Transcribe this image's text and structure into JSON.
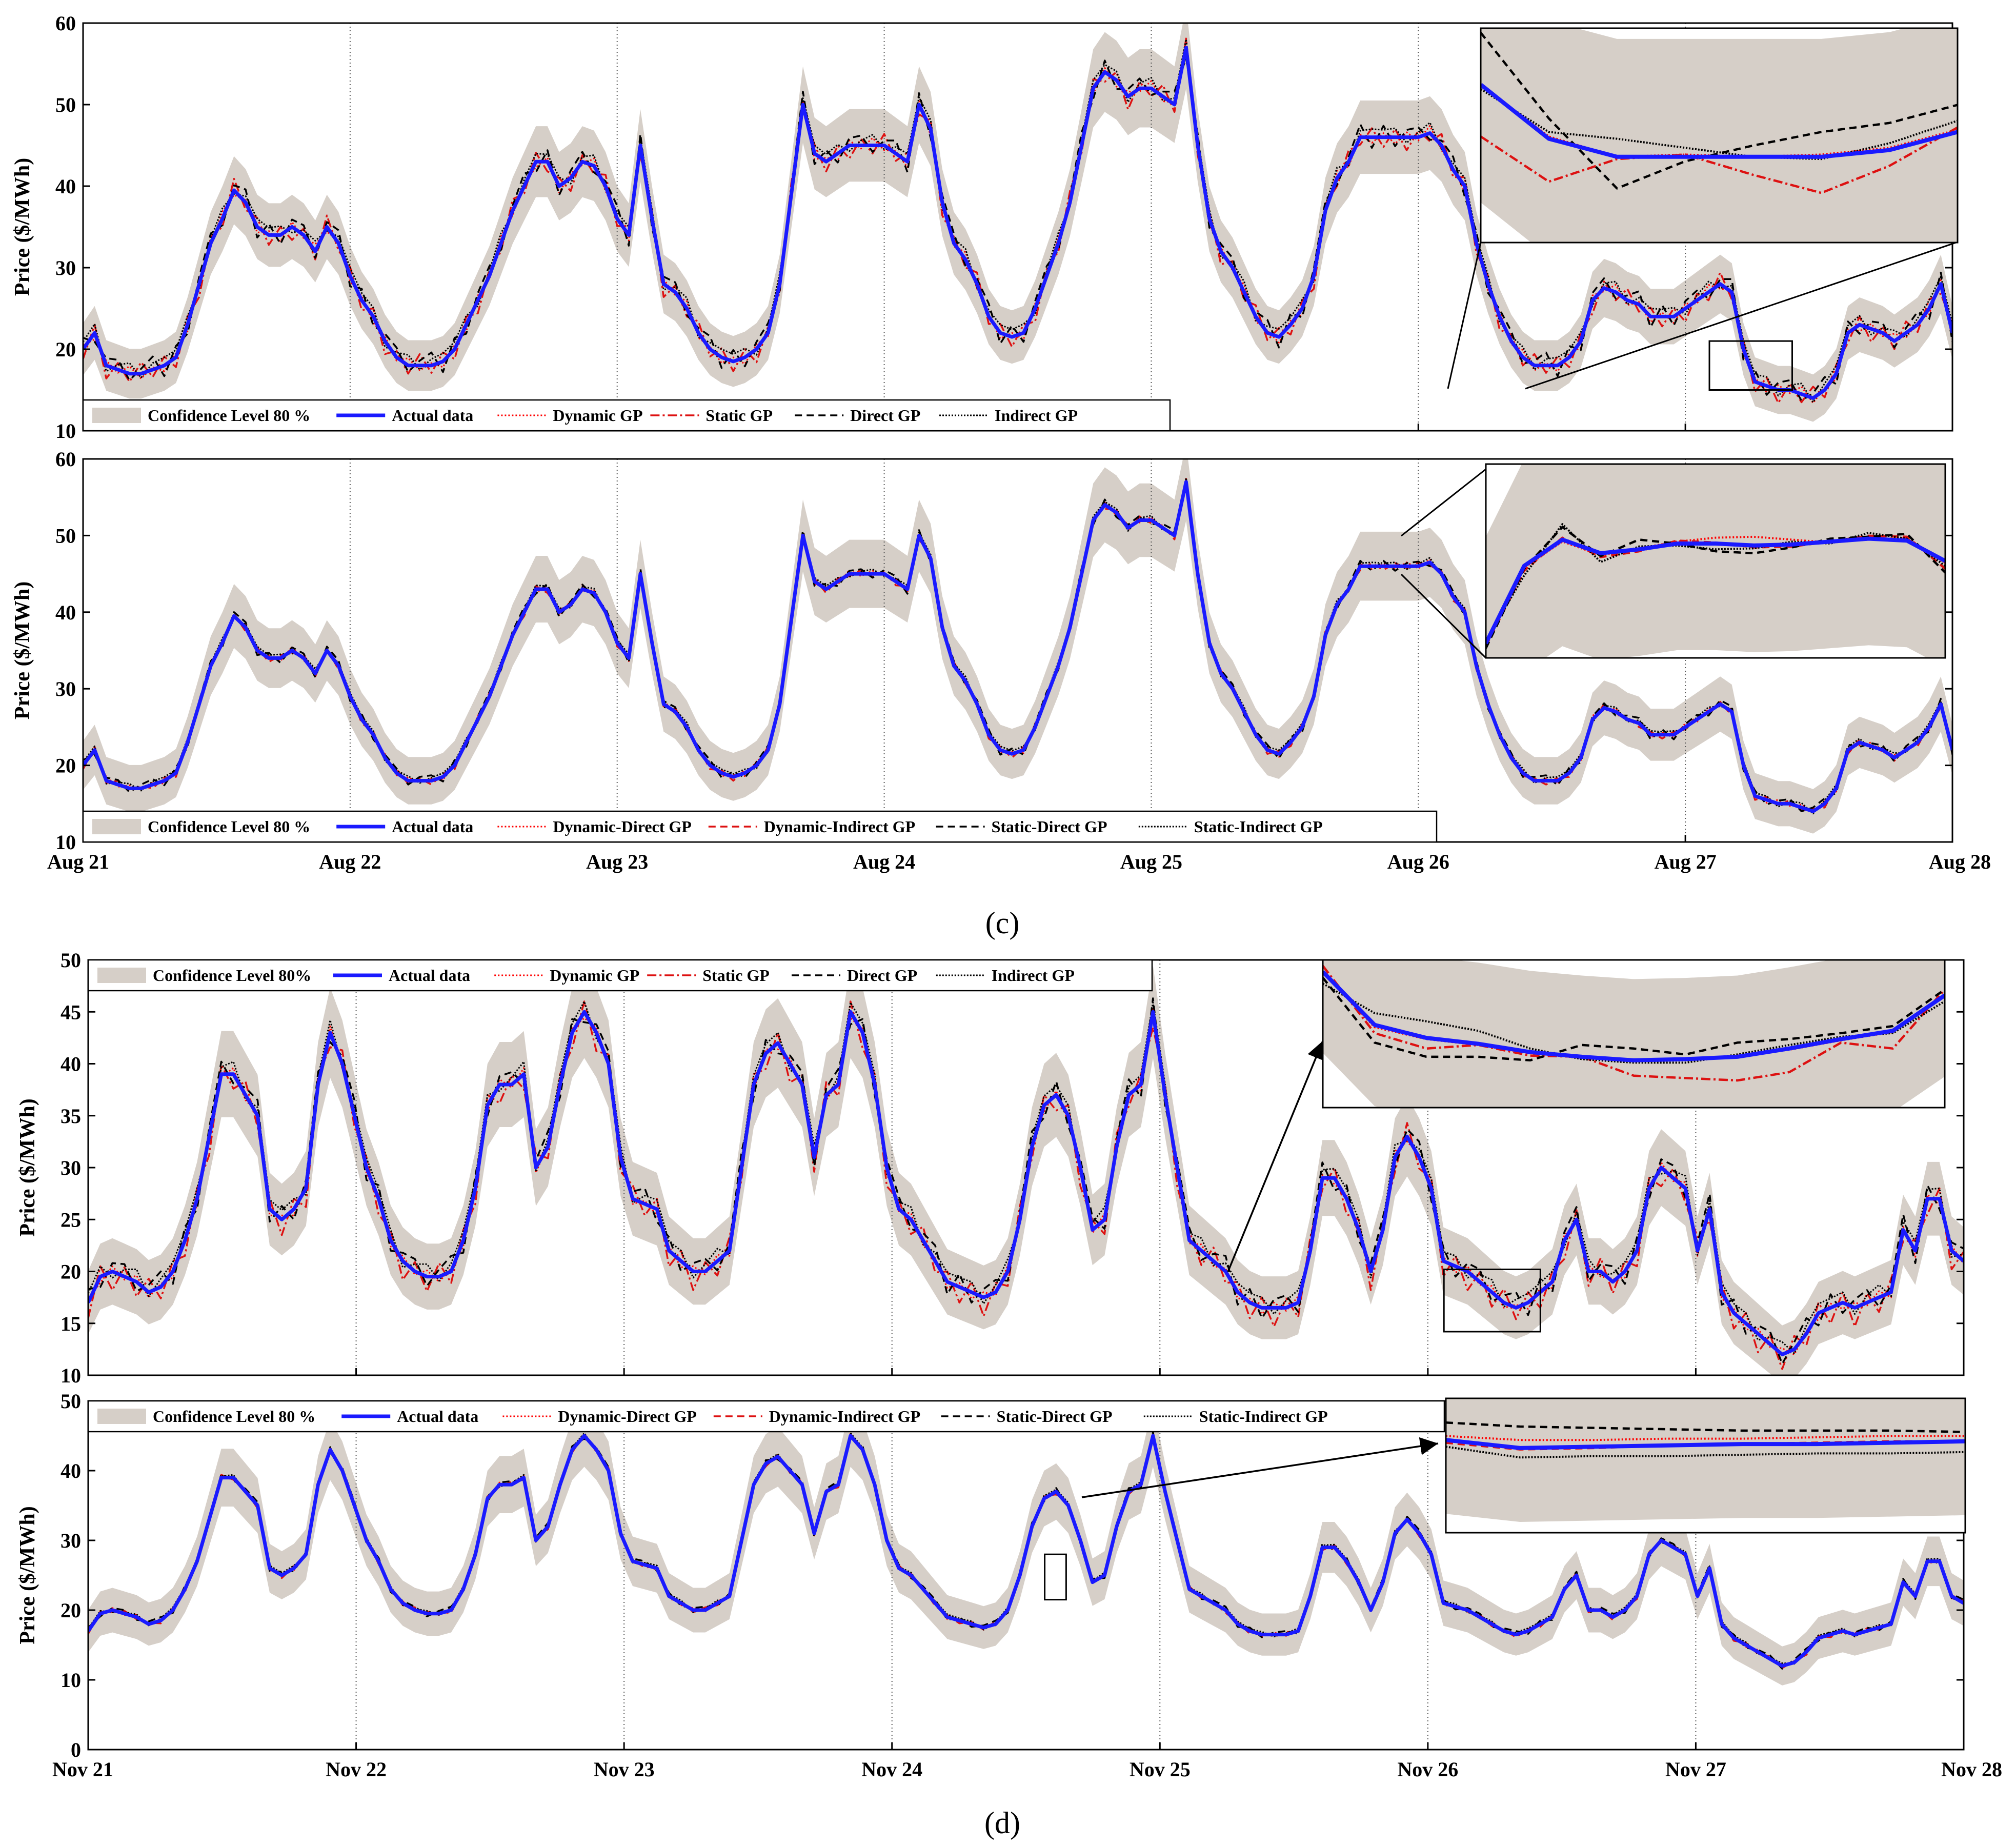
{
  "colors": {
    "band": "#d6cfc8",
    "actual": "#1a1aff",
    "dynamic": "#ff0000",
    "static": "#dd1111",
    "direct": "#000000",
    "indirect": "#000000"
  },
  "captions": {
    "c": "(c)",
    "d": "(d)"
  },
  "chart_data": [
    {
      "type": "line",
      "panel": "c-top",
      "ylabel": "Price ($/MWh)",
      "ylim": [
        10,
        60
      ],
      "yticks": [
        10,
        20,
        30,
        40,
        50,
        60
      ],
      "xticklabels": [
        "Aug 21",
        "Aug 22",
        "Aug 23",
        "Aug 24",
        "Aug 25",
        "Aug 26",
        "Aug 27",
        "Aug 28"
      ],
      "xlabels_shown": false,
      "legend": [
        "Confidence Level 80 %",
        "Actual data",
        "Dynamic GP",
        "Static GP",
        "Direct GP",
        "Indirect GP"
      ],
      "legend_position": "bottom-left",
      "actual": [
        20,
        22,
        18,
        17.5,
        17,
        17,
        17.5,
        18,
        19,
        23,
        28,
        33,
        36,
        39.5,
        38,
        35,
        34,
        34,
        35,
        34,
        32,
        35,
        33,
        29,
        26,
        24,
        21,
        19,
        18,
        18,
        18,
        18.5,
        20,
        23,
        26,
        29,
        33,
        37,
        40,
        43,
        43,
        40,
        41,
        43,
        42.5,
        40,
        36,
        34,
        45,
        36,
        28,
        27,
        25,
        22,
        20,
        19,
        18.5,
        19,
        20,
        22,
        28,
        39,
        50,
        44,
        43,
        44,
        45,
        45,
        45,
        45,
        44,
        43,
        50,
        47,
        38,
        33,
        31,
        28,
        24,
        22,
        21.5,
        22,
        25,
        29,
        33,
        38,
        45,
        52,
        54,
        53,
        51,
        52,
        52,
        51,
        50,
        57,
        45,
        36,
        32,
        30,
        27,
        24,
        22,
        21.5,
        23,
        25,
        29,
        37,
        41,
        43,
        46,
        46,
        46,
        46,
        46,
        46,
        46.5,
        45,
        42,
        40,
        33,
        28,
        24,
        21,
        19,
        18,
        18,
        18,
        19,
        21,
        26,
        27.5,
        27,
        26,
        25.5,
        24,
        24,
        24,
        25,
        26,
        27,
        28,
        27,
        20,
        16,
        15.5,
        15,
        15,
        14.5,
        14,
        15,
        17,
        22,
        23,
        22.5,
        22,
        21,
        22,
        23,
        25,
        28,
        22
      ],
      "series": [
        {
          "name": "Dynamic GP",
          "offsets": [
            0.5,
            -0.8,
            0.6,
            -0.4,
            0.9,
            -0.6,
            0.3,
            -0.7
          ]
        },
        {
          "name": "Static GP",
          "offsets": [
            -1.2,
            1.0,
            -1.6,
            0.8,
            -1.0,
            1.4,
            -0.9,
            1.1
          ]
        },
        {
          "name": "Direct GP",
          "offsets": [
            1.4,
            -1.1,
            0.9,
            1.2,
            -0.8,
            0.6,
            1.6,
            -1.3
          ]
        },
        {
          "name": "Indirect GP",
          "offsets": [
            0.9,
            1.1,
            -0.7,
            0.6,
            1.3,
            -0.5,
            0.8,
            1.0
          ]
        }
      ],
      "inset": {
        "values": {
          "Actual data": [
            21,
            18.6,
            17.8,
            17.8,
            17.8,
            17.8,
            18.1,
            18.9
          ],
          "Dynamic GP": [
            21,
            18.7,
            17.8,
            17.9,
            17.8,
            17.9,
            18.2,
            19.0
          ],
          "Static GP": [
            18.7,
            16.7,
            17.7,
            17.9,
            17.0,
            16.2,
            17.4,
            19.1
          ],
          "Direct GP": [
            23.3,
            19.5,
            16.4,
            17.6,
            18.3,
            18.9,
            19.3,
            20.1
          ],
          "Indirect GP": [
            20.8,
            18.9,
            18.6,
            18.2,
            17.8,
            17.7,
            18.4,
            19.4
          ]
        },
        "ylim": [
          14,
          23.5
        ]
      }
    },
    {
      "type": "line",
      "panel": "c-bottom",
      "ylabel": "Price ($/MWh)",
      "ylim": [
        10,
        60
      ],
      "yticks": [
        10,
        20,
        30,
        40,
        50,
        60
      ],
      "xticklabels": [
        "Aug 21",
        "Aug 22",
        "Aug 23",
        "Aug 24",
        "Aug 25",
        "Aug 26",
        "Aug 27",
        "Aug 28"
      ],
      "xlabels_shown": true,
      "legend": [
        "Confidence Level 80 %",
        "Actual data",
        "Dynamic-Direct GP",
        "Dynamic-Indirect GP",
        "Static-Direct GP",
        "Static-Indirect GP"
      ],
      "legend_position": "bottom-left",
      "actual": [
        20,
        22,
        18,
        17.5,
        17,
        17,
        17.5,
        18,
        19,
        23,
        28,
        33,
        36,
        39.5,
        38,
        35,
        34,
        34,
        35,
        34,
        32,
        35,
        33,
        29,
        26,
        24,
        21,
        19,
        18,
        18,
        18,
        18.5,
        20,
        23,
        26,
        29,
        33,
        37,
        40,
        43,
        43,
        40,
        41,
        43,
        42.5,
        40,
        36,
        34,
        45,
        36,
        28,
        27,
        25,
        22,
        20,
        19,
        18.5,
        19,
        20,
        22,
        28,
        39,
        50,
        44,
        43,
        44,
        45,
        45,
        45,
        45,
        44,
        43,
        50,
        47,
        38,
        33,
        31,
        28,
        24,
        22,
        21.5,
        22,
        25,
        29,
        33,
        38,
        45,
        52,
        54,
        53,
        51,
        52,
        52,
        51,
        50,
        57,
        45,
        36,
        32,
        30,
        27,
        24,
        22,
        21.5,
        23,
        25,
        29,
        37,
        41,
        43,
        46,
        46,
        46,
        46,
        46,
        46,
        46.5,
        45,
        42,
        40,
        33,
        28,
        24,
        21,
        19,
        18,
        18,
        18,
        19,
        21,
        26,
        27.5,
        27,
        26,
        25.5,
        24,
        24,
        24,
        25,
        26,
        27,
        28,
        27,
        20,
        16,
        15.5,
        15,
        15,
        14.5,
        14,
        15,
        17,
        22,
        23,
        22.5,
        22,
        21,
        22,
        23,
        25,
        28,
        22
      ],
      "series": [
        {
          "name": "Dynamic-Direct GP",
          "offsets": [
            0.3,
            -0.4,
            0.5,
            -0.3,
            0.4,
            -0.2,
            0.3,
            -0.4
          ]
        },
        {
          "name": "Dynamic-Indirect GP",
          "offsets": [
            -0.5,
            0.4,
            -0.3,
            0.5,
            -0.4,
            0.3,
            -0.5,
            0.4
          ]
        },
        {
          "name": "Static-Direct GP",
          "offsets": [
            0.7,
            -0.6,
            0.4,
            0.6,
            -0.5,
            0.5,
            0.7,
            -0.6
          ]
        },
        {
          "name": "Static-Indirect GP",
          "offsets": [
            0.4,
            0.5,
            -0.4,
            0.3,
            0.6,
            -0.3,
            0.4,
            0.5
          ]
        }
      ],
      "inset": {
        "values": {
          "Actual data": [
            35.5,
            43.5,
            46.2,
            44.8,
            45.2,
            45.8,
            45.8,
            45.6,
            45.7,
            46.0,
            46.3,
            46.1,
            44.0
          ],
          "Dynamic-Direct GP": [
            35.5,
            43.3,
            46.0,
            44.6,
            45.3,
            46.0,
            46.4,
            46.5,
            46.2,
            45.9,
            46.2,
            46.4,
            43.8
          ],
          "Dynamic-Indirect GP": [
            35.2,
            43.0,
            46.4,
            44.4,
            45.0,
            46.1,
            45.9,
            45.4,
            45.5,
            46.0,
            46.6,
            46.5,
            43.2
          ],
          "Static-Direct GP": [
            35.0,
            43.2,
            47.5,
            44.5,
            46.2,
            45.8,
            45.0,
            44.8,
            45.4,
            46.3,
            46.5,
            46.8,
            42.8
          ],
          "Static-Indirect GP": [
            35.8,
            42.5,
            47.8,
            43.9,
            45.5,
            45.6,
            45.2,
            45.3,
            46.0,
            45.8,
            46.9,
            46.3,
            43.5
          ]
        },
        "ylim": [
          34,
          54
        ]
      }
    },
    {
      "type": "line",
      "panel": "d-top",
      "ylabel": "Price ($/MWh)",
      "ylim": [
        10,
        50
      ],
      "yticks": [
        10,
        15,
        20,
        25,
        30,
        35,
        40,
        45,
        50
      ],
      "xticklabels": [
        "Nov 21",
        "Nov 22",
        "Nov 23",
        "Nov 24",
        "Nov 25",
        "Nov 26",
        "Nov 27",
        "Nov 28"
      ],
      "xlabels_shown": false,
      "legend": [
        "Confidence Level 80%",
        "Actual data",
        "Dynamic GP",
        "Static GP",
        "Direct GP",
        "Indirect GP"
      ],
      "legend_position": "top-left",
      "actual": [
        17,
        19.5,
        20,
        19.5,
        19,
        18,
        18.5,
        20,
        23,
        27,
        33,
        39,
        39,
        37,
        35,
        26,
        25,
        26,
        28,
        38,
        43,
        40,
        35,
        30,
        27,
        23,
        21,
        20,
        19.5,
        19.5,
        20,
        23,
        28,
        36,
        38,
        38,
        39,
        30,
        32,
        38,
        43,
        45,
        43,
        40,
        31,
        27,
        26.5,
        26,
        22,
        21,
        20,
        20,
        21,
        22,
        30,
        38,
        41,
        42,
        40,
        38,
        31,
        37,
        38,
        45,
        43,
        38,
        30,
        26,
        25,
        23,
        21,
        19,
        18.5,
        18,
        17.5,
        18,
        20,
        25,
        32,
        36,
        37,
        35,
        30,
        24,
        25,
        32,
        37,
        38,
        45,
        37,
        30,
        23,
        22,
        21,
        20,
        18,
        17,
        16.5,
        16.5,
        16.5,
        17,
        22,
        29,
        29,
        27,
        24,
        20,
        24,
        31,
        33,
        31,
        28,
        21,
        20.5,
        20,
        19,
        18,
        17,
        16.5,
        17,
        18,
        19,
        23,
        25,
        20,
        20,
        19,
        20,
        22,
        28,
        30,
        29,
        28,
        22,
        26,
        18,
        16,
        15,
        14,
        13,
        12,
        12.5,
        14,
        16,
        16.5,
        17,
        16.5,
        17,
        17.5,
        18,
        24,
        22,
        27,
        27,
        22,
        21
      ],
      "series": [
        {
          "name": "Dynamic GP",
          "offsets": [
            0.4,
            -0.6,
            0.5,
            -0.3,
            0.6,
            -0.5,
            0.3,
            -0.6
          ]
        },
        {
          "name": "Static GP",
          "offsets": [
            -1.5,
            1.0,
            -1.8,
            0.9,
            -1.4,
            1.3,
            -1.1,
            1.0
          ]
        },
        {
          "name": "Direct GP",
          "offsets": [
            1.3,
            -1.0,
            0.8,
            1.2,
            -0.9,
            0.7,
            1.5,
            -1.2
          ]
        },
        {
          "name": "Indirect GP",
          "offsets": [
            0.9,
            1.0,
            -0.6,
            0.7,
            1.2,
            -0.4,
            0.8,
            0.9
          ]
        }
      ],
      "inset": {
        "values": {
          "Actual data": [
            24,
            19.5,
            18.4,
            17.9,
            17.2,
            16.8,
            16.5,
            16.6,
            16.8,
            17.5,
            18.3,
            19.0,
            22.0
          ],
          "Dynamic GP": [
            24,
            19.3,
            18.3,
            17.8,
            17.1,
            16.7,
            16.5,
            16.6,
            16.9,
            17.4,
            18.2,
            18.9,
            22.0
          ],
          "Static GP": [
            24.5,
            18.8,
            17.5,
            17.8,
            16.9,
            16.8,
            15.2,
            15.0,
            14.8,
            15.5,
            18.0,
            17.5,
            22.5
          ],
          "Direct GP": [
            23.5,
            18.0,
            16.8,
            16.8,
            16.5,
            17.8,
            17.5,
            17.0,
            18.0,
            18.3,
            18.8,
            19.4,
            22.5
          ],
          "Indirect GP": [
            23.0,
            20.5,
            19.8,
            19.0,
            17.5,
            16.6,
            16.3,
            16.3,
            17.0,
            17.8,
            18.5,
            18.8,
            21.5
          ]
        },
        "ylim": [
          12.5,
          25
        ]
      }
    },
    {
      "type": "line",
      "panel": "d-bottom",
      "ylabel": "Price ($/MWh)",
      "ylim": [
        0,
        50
      ],
      "yticks": [
        0,
        10,
        20,
        30,
        40,
        50
      ],
      "xticklabels": [
        "Nov 21",
        "Nov 22",
        "Nov 23",
        "Nov 24",
        "Nov 25",
        "Nov 26",
        "Nov 27",
        "Nov 28"
      ],
      "xlabels_shown": true,
      "legend": [
        "Confidence Level 80 %",
        "Actual data",
        "Dynamic-Direct GP",
        "Dynamic-Indirect GP",
        "Static-Direct GP",
        "Static-Indirect GP"
      ],
      "legend_position": "top-left",
      "actual": [
        17,
        19.5,
        20,
        19.5,
        19,
        18,
        18.5,
        20,
        23,
        27,
        33,
        39,
        39,
        37,
        35,
        26,
        25,
        26,
        28,
        38,
        43,
        40,
        35,
        30,
        27,
        23,
        21,
        20,
        19.5,
        19.5,
        20,
        23,
        28,
        36,
        38,
        38,
        39,
        30,
        32,
        38,
        43,
        45,
        43,
        40,
        31,
        27,
        26.5,
        26,
        22,
        21,
        20,
        20,
        21,
        22,
        30,
        38,
        41,
        42,
        40,
        38,
        31,
        37,
        38,
        45,
        43,
        38,
        30,
        26,
        25,
        23,
        21,
        19,
        18.5,
        18,
        17.5,
        18,
        20,
        25,
        32,
        36,
        37,
        35,
        30,
        24,
        25,
        32,
        37,
        38,
        45,
        37,
        30,
        23,
        22,
        21,
        20,
        18,
        17,
        16.5,
        16.5,
        16.5,
        17,
        22,
        29,
        29,
        27,
        24,
        20,
        24,
        31,
        33,
        31,
        28,
        21,
        20.5,
        20,
        19,
        18,
        17,
        16.5,
        17,
        18,
        19,
        23,
        25,
        20,
        20,
        19,
        20,
        22,
        28,
        30,
        29,
        28,
        22,
        26,
        18,
        16,
        15,
        14,
        13,
        12,
        12.5,
        14,
        16,
        16.5,
        17,
        16.5,
        17,
        17.5,
        18,
        24,
        22,
        27,
        27,
        22,
        21
      ],
      "series": [
        {
          "name": "Dynamic-Direct GP",
          "offsets": [
            0.2,
            -0.3,
            0.3,
            -0.2,
            0.3,
            -0.2,
            0.2,
            -0.3
          ]
        },
        {
          "name": "Dynamic-Indirect GP",
          "offsets": [
            -0.4,
            0.3,
            -0.3,
            0.4,
            -0.3,
            0.2,
            -0.4,
            0.3
          ]
        },
        {
          "name": "Static-Direct GP",
          "offsets": [
            0.5,
            -0.4,
            0.3,
            0.5,
            -0.4,
            0.4,
            0.5,
            -0.4
          ]
        },
        {
          "name": "Static-Indirect GP",
          "offsets": [
            0.3,
            0.4,
            -0.3,
            0.2,
            0.4,
            -0.2,
            0.3,
            0.4
          ]
        }
      ],
      "inset": {
        "values": {
          "Actual data": [
            24.9,
            24.3,
            24.4,
            24.5,
            24.6,
            24.6,
            24.7,
            24.8
          ],
          "Dynamic-Direct GP": [
            25.2,
            24.9,
            24.9,
            25.0,
            25.0,
            25.1,
            25.2,
            25.2
          ],
          "Dynamic-Indirect GP": [
            24.7,
            24.2,
            24.3,
            24.5,
            24.6,
            24.7,
            24.8,
            24.8
          ],
          "Static-Direct GP": [
            26.2,
            25.9,
            25.8,
            25.7,
            25.6,
            25.6,
            25.6,
            25.5
          ],
          "Static-Indirect GP": [
            24.4,
            23.6,
            23.7,
            23.7,
            23.8,
            23.9,
            23.9,
            24.0
          ]
        },
        "ylim": [
          18,
          28
        ]
      }
    }
  ]
}
